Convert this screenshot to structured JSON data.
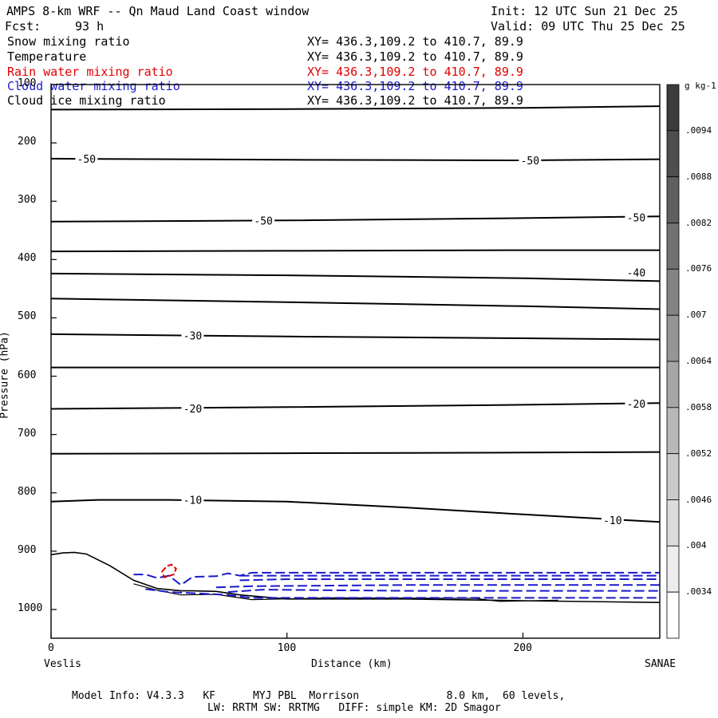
{
  "header": {
    "title": "AMPS 8-km WRF -- Qn Maud Land Coast window",
    "init": "Init: 12 UTC Sun 21 Dec 25",
    "fcst_label": "Fcst:",
    "fcst_value": "93 h",
    "valid": "Valid: 09 UTC Thu 25 Dec 25"
  },
  "fields": [
    {
      "name": "Snow mixing ratio",
      "xy": "XY= 436.3,109.2 to 410.7, 89.9",
      "color": "#000000"
    },
    {
      "name": "Temperature",
      "xy": "XY= 436.3,109.2 to 410.7, 89.9",
      "color": "#000000"
    },
    {
      "name": "Rain water mixing ratio",
      "xy": "XY= 436.3,109.2 to 410.7, 89.9",
      "color": "#e00000"
    },
    {
      "name": "Cloud water mixing ratio",
      "xy": "XY= 436.3,109.2 to 410.7, 89.9",
      "color": "#1a1acc"
    },
    {
      "name": "Cloud ice mixing ratio",
      "xy": "XY= 436.3,109.2 to 410.7, 89.9",
      "color": "#000000"
    }
  ],
  "footer": {
    "line1": "Model Info: V4.3.3   KF      MYJ PBL  Morrison              8.0 km,  60 levels,",
    "line2": "LW: RRTM SW: RRTMG   DIFF: simple KM: 2D Smagor"
  },
  "chart_data": {
    "type": "cross-section",
    "xlabel": "Distance (km)",
    "ylabel": "Pressure (hPa)",
    "xlim": [
      0,
      258
    ],
    "ylim": [
      1050,
      100
    ],
    "x_ticks": [
      0,
      100,
      200
    ],
    "y_ticks": [
      100,
      200,
      300,
      400,
      500,
      600,
      700,
      800,
      900,
      1000
    ],
    "left_endpoint": "Veslis",
    "right_endpoint": "SANAE",
    "colorbar": {
      "unit": "g kg-1",
      "ticks": [
        ".0094",
        ".0088",
        ".0082",
        ".0076",
        ".007",
        ".0064",
        ".0058",
        ".0052",
        ".0046",
        ".004",
        ".0034"
      ]
    },
    "temperature_contours": [
      {
        "x": [
          0,
          100,
          200,
          258
        ],
        "p": [
          143,
          142,
          140,
          137
        ]
      },
      {
        "x": [
          0,
          100,
          200,
          258
        ],
        "p": [
          227,
          229,
          230,
          228
        ]
      },
      {
        "x": [
          0,
          100,
          200,
          258
        ],
        "p": [
          335,
          333,
          329,
          326
        ]
      },
      {
        "x": [
          0,
          100,
          200,
          258
        ],
        "p": [
          386,
          385,
          384,
          384
        ]
      },
      {
        "x": [
          0,
          100,
          200,
          258
        ],
        "p": [
          424,
          427,
          432,
          437
        ]
      },
      {
        "x": [
          0,
          100,
          200,
          258
        ],
        "p": [
          467,
          473,
          480,
          485
        ]
      },
      {
        "x": [
          0,
          100,
          200,
          258
        ],
        "p": [
          528,
          532,
          535,
          537
        ]
      },
      {
        "x": [
          0,
          100,
          200,
          258
        ],
        "p": [
          585,
          585,
          585,
          585
        ]
      },
      {
        "x": [
          0,
          100,
          200,
          258
        ],
        "p": [
          656,
          653,
          649,
          646
        ]
      },
      {
        "x": [
          0,
          100,
          200,
          258
        ],
        "p": [
          733,
          732,
          731,
          730
        ]
      },
      {
        "x": [
          0,
          20,
          50,
          100,
          150,
          200,
          258
        ],
        "p": [
          815,
          812,
          812,
          815,
          825,
          837,
          850
        ]
      }
    ],
    "temperature_labels": [
      {
        "text": "-50",
        "x": 15,
        "p": 227
      },
      {
        "text": "-50",
        "x": 203,
        "p": 230
      },
      {
        "text": "-50",
        "x": 90,
        "p": 333
      },
      {
        "text": "-50",
        "x": 248,
        "p": 328
      },
      {
        "text": "-40",
        "x": 248,
        "p": 422
      },
      {
        "text": "-30",
        "x": 60,
        "p": 530
      },
      {
        "text": "-20",
        "x": 60,
        "p": 655
      },
      {
        "text": "-20",
        "x": 248,
        "p": 647
      },
      {
        "text": "-10",
        "x": 60,
        "p": 812
      },
      {
        "text": "-10",
        "x": 238,
        "p": 847
      }
    ],
    "terrain": {
      "x": [
        0,
        5,
        10,
        15,
        25,
        35,
        45,
        55,
        60,
        70,
        80,
        100,
        150,
        200,
        258
      ],
      "p": [
        906,
        903,
        902,
        905,
        925,
        950,
        964,
        968,
        968,
        969,
        975,
        982,
        982,
        985,
        988
      ]
    },
    "snow_contour": {
      "x": [
        35,
        45,
        55,
        70,
        85,
        120,
        180,
        190,
        215
      ],
      "p": [
        956,
        967,
        975,
        974,
        983,
        980,
        981,
        986,
        984
      ]
    },
    "cloud_water_contours": [
      {
        "x": [
          35,
          40,
          45,
          50,
          55,
          60,
          70,
          75,
          80,
          85,
          100,
          258
        ],
        "p": [
          940,
          940,
          946,
          942,
          958,
          944,
          943,
          938,
          942,
          937,
          937,
          937
        ]
      },
      {
        "x": [
          80,
          90,
          150,
          258
        ],
        "p": [
          942,
          942,
          942,
          942
        ]
      },
      {
        "x": [
          80,
          100,
          150,
          258
        ],
        "p": [
          950,
          948,
          948,
          948
        ]
      },
      {
        "x": [
          70,
          85,
          150,
          258
        ],
        "p": [
          962,
          960,
          958,
          958
        ]
      },
      {
        "x": [
          75,
          90,
          150,
          258
        ],
        "p": [
          970,
          966,
          968,
          968
        ]
      },
      {
        "x": [
          40,
          50,
          60,
          75,
          85,
          120,
          258
        ],
        "p": [
          965,
          970,
          972,
          975,
          980,
          980,
          980
        ]
      }
    ],
    "rain_contour": {
      "x": [
        47,
        49,
        51,
        53,
        52,
        48,
        47
      ],
      "p": [
        935,
        926,
        923,
        930,
        940,
        945,
        935
      ]
    }
  }
}
